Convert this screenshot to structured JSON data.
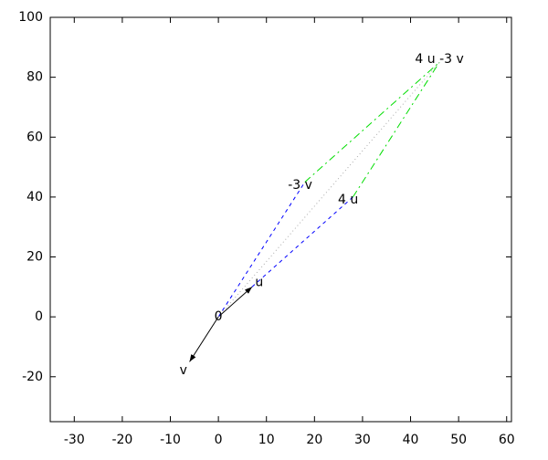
{
  "chart_data": {
    "type": "vector",
    "xlim": [
      -35,
      61
    ],
    "ylim": [
      -35,
      100
    ],
    "xticks": [
      -30,
      -20,
      -10,
      0,
      10,
      20,
      30,
      40,
      50,
      60
    ],
    "yticks": [
      -20,
      0,
      20,
      40,
      60,
      80,
      100
    ],
    "segments": [
      {
        "x": [
          0,
          7
        ],
        "y": [
          0,
          10
        ],
        "color": "#000000",
        "style": "solid",
        "arrow": true
      },
      {
        "x": [
          0,
          -6
        ],
        "y": [
          0,
          -15
        ],
        "color": "#000000",
        "style": "solid",
        "arrow": true
      },
      {
        "x": [
          0,
          18
        ],
        "y": [
          0,
          45
        ],
        "color": "#0000ff",
        "style": "dashed",
        "arrow": false
      },
      {
        "x": [
          7,
          28
        ],
        "y": [
          10,
          40
        ],
        "color": "#0000ff",
        "style": "dashed",
        "arrow": false
      },
      {
        "x": [
          18,
          46
        ],
        "y": [
          45,
          85
        ],
        "color": "#00dd00",
        "style": "dashdot",
        "arrow": false
      },
      {
        "x": [
          28,
          46
        ],
        "y": [
          40,
          85
        ],
        "color": "#00dd00",
        "style": "dashdot",
        "arrow": false
      },
      {
        "x": [
          0,
          46
        ],
        "y": [
          0,
          85
        ],
        "color": "#aaaaaa",
        "style": "dotted",
        "arrow": false
      }
    ],
    "labels": [
      {
        "text": "0",
        "x": 0,
        "y": 0
      },
      {
        "text": "u",
        "x": 8.5,
        "y": 11.5
      },
      {
        "text": "v",
        "x": -7.3,
        "y": -18
      },
      {
        "text": "-3 v",
        "x": 17,
        "y": 44
      },
      {
        "text": "4 u",
        "x": 27,
        "y": 39
      },
      {
        "text": "4 u -3 v",
        "x": 46,
        "y": 86
      }
    ]
  }
}
